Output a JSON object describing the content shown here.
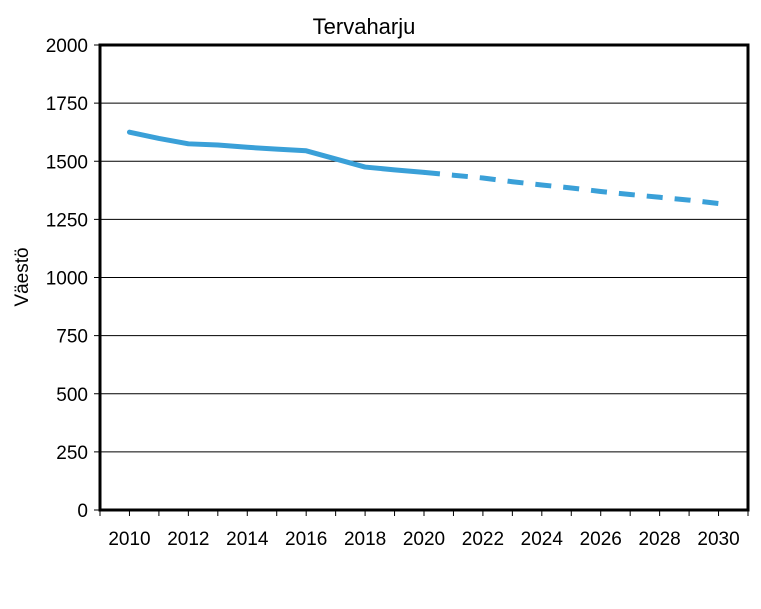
{
  "chart_data": {
    "type": "line",
    "title": "Tervaharju",
    "xlabel": "",
    "ylabel": "Väestö",
    "xlim": [
      2009,
      2031
    ],
    "ylim": [
      0,
      2000
    ],
    "y_ticks": [
      "0",
      "250",
      "500",
      "750",
      "1000",
      "1250",
      "1500",
      "1750",
      "2000"
    ],
    "x_ticks": [
      "2010",
      "2012",
      "2014",
      "2016",
      "2018",
      "2020",
      "2022",
      "2024",
      "2026",
      "2028",
      "2030"
    ],
    "grid": "horizontal",
    "legend": "none",
    "series": [
      {
        "style": "solid",
        "color": "#3aa0d8",
        "x": [
          2010,
          2011,
          2012,
          2013,
          2014,
          2015,
          2016,
          2017,
          2018,
          2019,
          2020
        ],
        "y": [
          1625,
          1598,
          1575,
          1570,
          1560,
          1552,
          1545,
          1510,
          1475,
          1463,
          1452
        ]
      },
      {
        "style": "dashed",
        "color": "#3aa0d8",
        "x": [
          2020,
          2021,
          2022,
          2023,
          2024,
          2025,
          2026,
          2027,
          2028,
          2029,
          2030
        ],
        "y": [
          1452,
          1440,
          1428,
          1412,
          1398,
          1385,
          1370,
          1357,
          1345,
          1333,
          1318
        ]
      }
    ]
  }
}
